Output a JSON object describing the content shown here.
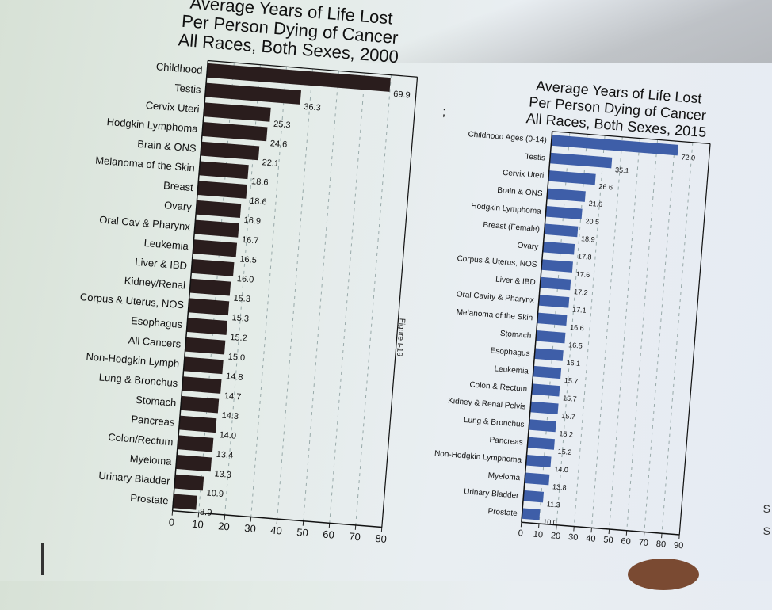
{
  "chart_data": [
    {
      "type": "bar",
      "orientation": "horizontal",
      "title_lines": [
        "Average Years of Life Lost",
        "Per Person Dying of Cancer",
        "All Races, Both Sexes, 2000"
      ],
      "categories": [
        "Childhood",
        "Testis",
        "Cervix Uteri",
        "Hodgkin Lymphoma",
        "Brain & ONS",
        "Melanoma of the Skin",
        "Breast",
        "Ovary",
        "Oral Cav & Pharynx",
        "Leukemia",
        "Liver & IBD",
        "Kidney/Renal",
        "Corpus & Uterus, NOS",
        "Esophagus",
        "All Cancers",
        "Non-Hodgkin Lymph",
        "Lung & Bronchus",
        "Stomach",
        "Pancreas",
        "Colon/Rectum",
        "Myeloma",
        "Urinary Bladder",
        "Prostate"
      ],
      "values": [
        69.9,
        36.3,
        25.3,
        24.6,
        22.1,
        18.6,
        18.6,
        16.9,
        16.7,
        16.5,
        16.0,
        15.3,
        15.3,
        15.2,
        15.0,
        14.8,
        14.7,
        14.3,
        14.0,
        13.4,
        13.3,
        10.9,
        8.9
      ],
      "value_labels": [
        "69.9",
        "36.3",
        "25.3",
        "24.6",
        "22.1",
        "18.6",
        "18.6",
        "16.9",
        "16.7",
        "16.5",
        "16.0",
        "15.3",
        "15.3",
        "15.2",
        "15.0",
        "14.8",
        "14.7",
        "14.3",
        "14.0",
        "13.4",
        "13.3",
        "10.9",
        "8.9"
      ],
      "xlim": [
        0,
        80
      ],
      "xticks": [
        0,
        10,
        20,
        30,
        40,
        50,
        60,
        70,
        80
      ],
      "grid": "dashed vertical",
      "bar_color": "#2a1d1d"
    },
    {
      "type": "bar",
      "orientation": "horizontal",
      "title_lines": [
        "Average Years of Life Lost",
        "Per Person Dying of Cancer",
        "All Races, Both Sexes, 2015"
      ],
      "categories": [
        "Childhood Ages (0-14)",
        "Testis",
        "Cervix Uteri",
        "Brain & ONS",
        "Hodgkin Lymphoma",
        "Breast (Female)",
        "Ovary",
        "Corpus & Uterus, NOS",
        "Liver & IBD",
        "Oral Cavity & Pharynx",
        "Melanoma of the Skin",
        "Stomach",
        "Esophagus",
        "Leukemia",
        "Colon & Rectum",
        "Kidney & Renal Pelvis",
        "Lung & Bronchus",
        "Pancreas",
        "Non-Hodgkin Lymphoma",
        "Myeloma",
        "Urinary Bladder",
        "Prostate"
      ],
      "values": [
        72.0,
        35.1,
        26.6,
        21.6,
        20.5,
        18.9,
        17.8,
        17.6,
        17.2,
        17.1,
        16.6,
        16.5,
        16.1,
        15.7,
        15.7,
        15.7,
        15.2,
        15.2,
        14.0,
        13.8,
        11.3,
        10.0
      ],
      "value_labels": [
        "72.0",
        "35.1",
        "26.6",
        "21.6",
        "20.5",
        "18.9",
        "17.8",
        "17.6",
        "17.2",
        "17.1",
        "16.6",
        "16.5",
        "16.1",
        "15.7",
        "15.7",
        "15.7",
        "15.2",
        "15.2",
        "14.0",
        "13.8",
        "11.3",
        "10.0"
      ],
      "xlim": [
        0,
        90
      ],
      "xticks": [
        0,
        10,
        20,
        30,
        40,
        50,
        60,
        70,
        80,
        90
      ],
      "grid": "dashed vertical",
      "bar_color": "#3e5ea8"
    }
  ],
  "side_label": "Figure I-19",
  "marker_text": ";",
  "edge_letters": [
    "S",
    "S"
  ]
}
